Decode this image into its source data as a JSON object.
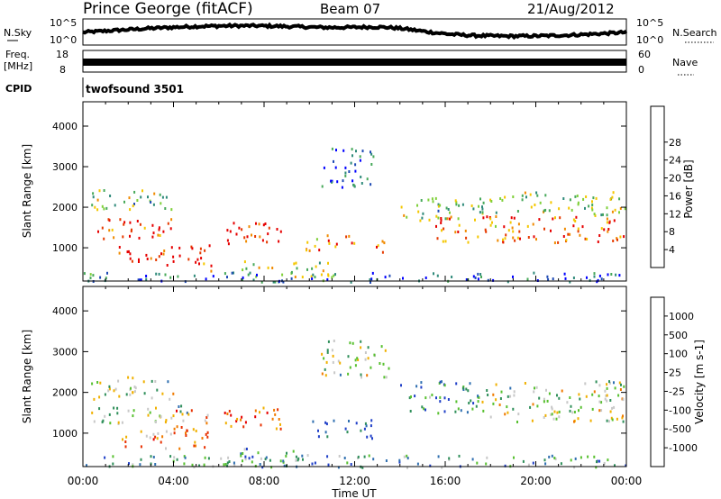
{
  "header": {
    "station": "Prince George (fitACF)",
    "beam": "Beam 07",
    "date": "21/Aug/2012"
  },
  "nsky_panel": {
    "left_label": "N.Sky",
    "left_ticks": [
      "10^5",
      "10^0"
    ],
    "right_label": "N.Search",
    "right_ticks": [
      "10^5",
      "10^0"
    ]
  },
  "freq_panel": {
    "left_label_1": "Freq.",
    "left_label_2": "[MHz]",
    "left_ticks": [
      "18",
      "8"
    ],
    "right_label": "Nave",
    "right_ticks": [
      "60",
      "0"
    ]
  },
  "cpid_panel": {
    "label": "CPID",
    "value": "twofsound 3501"
  },
  "chart_data": [
    {
      "type": "heatmap",
      "quantity": "Power",
      "ylabel": "Slant Range [km]",
      "xlabel": "Time UT",
      "x_ticks": [
        "00:00",
        "04:00",
        "08:00",
        "12:00",
        "16:00",
        "20:00",
        "00:00"
      ],
      "y_ticks": [
        1000,
        2000,
        3000,
        4000
      ],
      "ylim": [
        180,
        4600
      ],
      "colorbar": {
        "label": "Power [dB]",
        "ticks": [
          "4",
          "8",
          "12",
          "16",
          "20",
          "24",
          "28"
        ],
        "colors": [
          "#0000ff",
          "#1e4ab4",
          "#2f8a7a",
          "#47a95a",
          "#7fd03a",
          "#f4c700",
          "#f08a00",
          "#e63a00",
          "#e60000"
        ]
      },
      "scatter_features": [
        {
          "t0": 0.3,
          "t1": 4.2,
          "r0": 1950,
          "r1": 2450,
          "level": 0.45
        },
        {
          "t0": 0.3,
          "t1": 4.0,
          "r0": 1250,
          "r1": 1750,
          "level": 0.9
        },
        {
          "t0": 1.5,
          "t1": 5.6,
          "r0": 600,
          "r1": 1100,
          "level": 0.95
        },
        {
          "t0": 5.3,
          "t1": 5.8,
          "r0": 350,
          "r1": 650,
          "level": 0.85
        },
        {
          "t0": 6.2,
          "t1": 8.8,
          "r0": 1050,
          "r1": 1650,
          "level": 0.9
        },
        {
          "t0": 7.0,
          "t1": 11.5,
          "r0": 300,
          "r1": 700,
          "level": 0.55
        },
        {
          "t0": 9.8,
          "t1": 12.2,
          "r0": 950,
          "r1": 1350,
          "level": 0.8
        },
        {
          "t0": 12.8,
          "t1": 13.5,
          "r0": 750,
          "r1": 1200,
          "level": 0.8
        },
        {
          "t0": 10.5,
          "t1": 12.8,
          "r0": 2500,
          "r1": 3500,
          "level": 0.2
        },
        {
          "t0": 14.0,
          "t1": 17.8,
          "r0": 1700,
          "r1": 2300,
          "level": 0.45
        },
        {
          "t0": 15.5,
          "t1": 24.0,
          "r0": 1150,
          "r1": 1800,
          "level": 0.8
        },
        {
          "t0": 17.5,
          "t1": 24.0,
          "r0": 1800,
          "r1": 2400,
          "level": 0.5
        },
        {
          "t0": 0.0,
          "t1": 24.0,
          "r0": 180,
          "r1": 420,
          "level": 0.2
        }
      ]
    },
    {
      "type": "heatmap",
      "quantity": "Velocity",
      "ylabel": "Slant Range [km]",
      "xlabel": "Time UT",
      "x_ticks": [
        "00:00",
        "04:00",
        "08:00",
        "12:00",
        "16:00",
        "20:00",
        "00:00"
      ],
      "y_ticks": [
        1000,
        2000,
        3000,
        4000
      ],
      "ylim": [
        180,
        4600
      ],
      "colorbar": {
        "label": "Velocity [m s-1]",
        "ticks": [
          "1000",
          "500",
          "100",
          "25",
          "-25",
          "-100",
          "-500",
          "-1000"
        ],
        "colors": [
          "#2040c8",
          "#2f6fb0",
          "#2f8f5a",
          "#58c030",
          "#c8c8c8",
          "#f0b000",
          "#f07a00",
          "#e83000",
          "#e60000"
        ]
      },
      "scatter_features": [
        {
          "t0": 0.3,
          "t1": 4.0,
          "r0": 1850,
          "r1": 2400,
          "level": 0.45
        },
        {
          "t0": 0.3,
          "t1": 5.0,
          "r0": 1250,
          "r1": 1700,
          "level": 0.45
        },
        {
          "t0": 1.5,
          "t1": 5.5,
          "r0": 650,
          "r1": 1100,
          "level": 0.7
        },
        {
          "t0": 4.0,
          "t1": 5.5,
          "r0": 1000,
          "r1": 1600,
          "level": 0.75
        },
        {
          "t0": 6.2,
          "t1": 8.8,
          "r0": 1050,
          "r1": 1650,
          "level": 0.8
        },
        {
          "t0": 6.8,
          "t1": 10.0,
          "r0": 350,
          "r1": 650,
          "level": 0.3
        },
        {
          "t0": 10.0,
          "t1": 12.8,
          "r0": 900,
          "r1": 1350,
          "level": 0.1
        },
        {
          "t0": 14.0,
          "t1": 17.5,
          "r0": 1500,
          "r1": 2300,
          "level": 0.2
        },
        {
          "t0": 17.5,
          "t1": 24.0,
          "r0": 1300,
          "r1": 2300,
          "level": 0.45
        },
        {
          "t0": 10.5,
          "t1": 13.5,
          "r0": 2400,
          "r1": 3300,
          "level": 0.45
        },
        {
          "t0": 0.0,
          "t1": 24.0,
          "r0": 180,
          "r1": 480,
          "level": 0.3
        }
      ]
    }
  ]
}
